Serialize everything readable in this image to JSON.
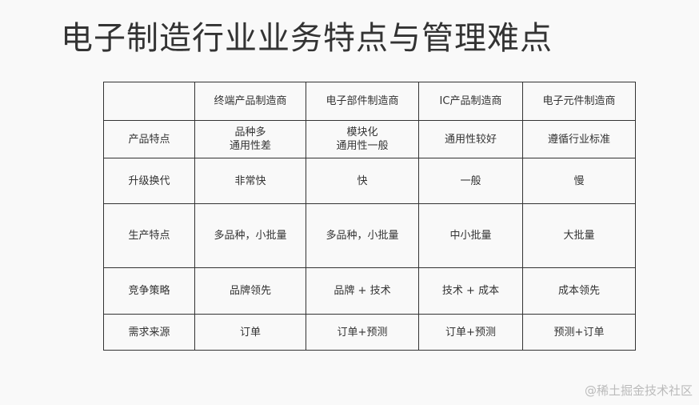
{
  "title": "电子制造行业业务特点与管理难点",
  "table": {
    "headers": [
      "",
      "终端产品制造商",
      "电子部件制造商",
      "IC产品制造商",
      "电子元件制造商"
    ],
    "rows": [
      {
        "label": "产品特点",
        "cells": [
          [
            "品种多",
            "通用性差"
          ],
          [
            "模块化",
            "通用性一般"
          ],
          [
            "通用性较好"
          ],
          [
            "遵循行业标准"
          ]
        ]
      },
      {
        "label": "升级换代",
        "cells": [
          [
            "非常快"
          ],
          [
            "快"
          ],
          [
            "一般"
          ],
          [
            "慢"
          ]
        ]
      },
      {
        "label": "生产特点",
        "cells": [
          [
            "多品种，小批量"
          ],
          [
            "多品种，小批量"
          ],
          [
            "中小批量"
          ],
          [
            "大批量"
          ]
        ]
      },
      {
        "label": "竞争策略",
        "cells": [
          [
            "品牌领先"
          ],
          [
            "品牌 + 技术"
          ],
          [
            "技术 + 成本"
          ],
          [
            "成本领先"
          ]
        ]
      },
      {
        "label": "需求来源",
        "cells": [
          [
            "订单"
          ],
          [
            "订单+预测"
          ],
          [
            "订单+预测"
          ],
          [
            "预测+订单"
          ]
        ]
      }
    ]
  },
  "watermark": "@稀土掘金技术社区"
}
